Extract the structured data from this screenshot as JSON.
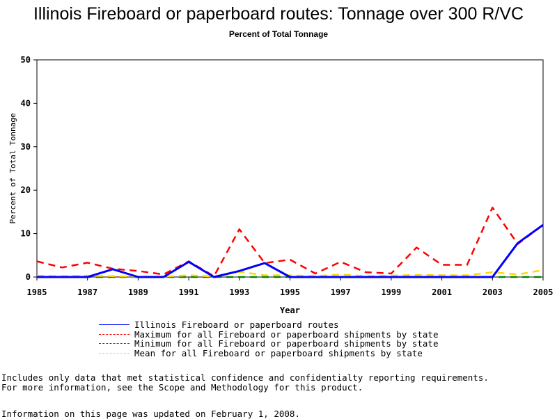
{
  "chart_data": {
    "type": "line",
    "title": "Illinois Fireboard or paperboard routes: Tonnage over 300 R/VC",
    "subtitle": "Percent of Total Tonnage",
    "xlabel": "Year",
    "ylabel": "Percent of Total Tonnage",
    "xlim": [
      1985,
      2005
    ],
    "ylim": [
      0,
      50
    ],
    "xticks": [
      "1985",
      "1987",
      "1989",
      "1991",
      "1993",
      "1995",
      "1997",
      "1999",
      "2001",
      "2003",
      "2005"
    ],
    "yticks": [
      "0",
      "10",
      "20",
      "30",
      "40",
      "50"
    ],
    "x": [
      1985,
      1986,
      1987,
      1988,
      1989,
      1990,
      1991,
      1992,
      1993,
      1994,
      1995,
      1996,
      1997,
      1998,
      1999,
      2000,
      2001,
      2002,
      2003,
      2004,
      2005
    ],
    "series": [
      {
        "name": "Illinois Fireboard or paperboard routes",
        "color": "#0000ff",
        "dash": "solid",
        "values": [
          0,
          0,
          0,
          1.8,
          0,
          0,
          3.5,
          0,
          1.4,
          3.2,
          0,
          0,
          0,
          0,
          0,
          0,
          0,
          0,
          0,
          7.8,
          12
        ]
      },
      {
        "name": "Maximum for all Fireboard or paperboard shipments by state",
        "color": "#ff0000",
        "dash": "dashed",
        "values": [
          3.6,
          2.2,
          3.3,
          1.9,
          1.4,
          0.6,
          3.6,
          0.2,
          11,
          3.2,
          4,
          0.8,
          3.5,
          1.1,
          0.8,
          6.8,
          2.8,
          2.8,
          16,
          7.6,
          12
        ]
      },
      {
        "name": "Minimum for all Fireboard or paperboard shipments by state",
        "color": "#008000",
        "dash": "dashed",
        "values": [
          0,
          0,
          0,
          0,
          0,
          0,
          0,
          0,
          0,
          0,
          0,
          0,
          0,
          0,
          0,
          0,
          0,
          0,
          0,
          0,
          0
        ]
      },
      {
        "name": "Mean for all Fireboard or paperboard shipments by state",
        "color": "#ffd700",
        "dash": "dashed",
        "values": [
          0.3,
          0.2,
          0.3,
          0.2,
          0.1,
          0.1,
          0.4,
          0.1,
          1.2,
          0.4,
          0.4,
          0.2,
          0.6,
          0.2,
          0.3,
          0.5,
          0.4,
          0.4,
          1.1,
          0.6,
          1.6
        ]
      }
    ]
  },
  "notes": [
    "Includes only data that met statistical confidence and confidentialty reporting requirements.",
    "For more information, see the Scope and Methodology for this product."
  ],
  "updated": "Information on this page was updated on February 1, 2008."
}
